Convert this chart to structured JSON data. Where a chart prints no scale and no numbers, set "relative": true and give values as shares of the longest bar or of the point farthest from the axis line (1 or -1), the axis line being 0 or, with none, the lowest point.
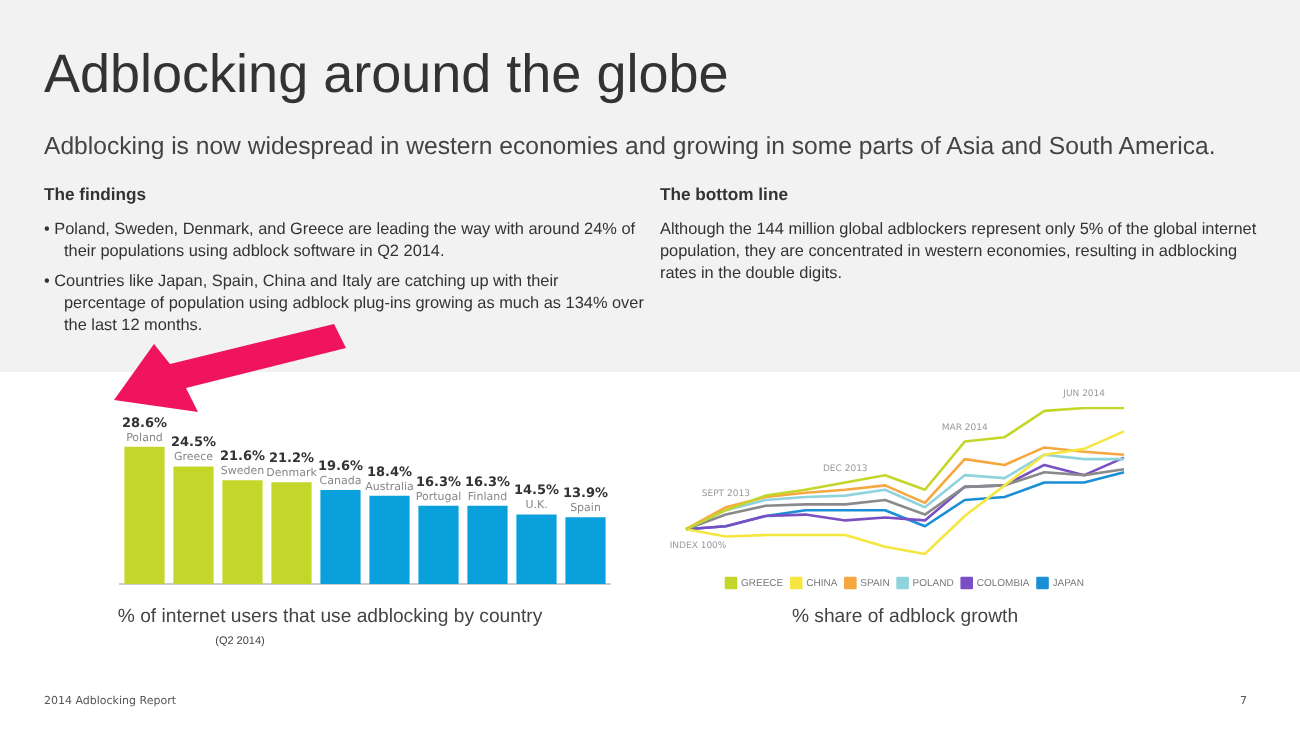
{
  "chart_data": [
    {
      "type": "other",
      "title": "Adblocking around the globe",
      "subtitle": "Adblocking is now widespread in western economies and growing in some parts of Asia and South America.",
      "annotations": [
        "The findings",
        "• Poland, Sweden, Denmark, and Greece are leading the way with around 24% of their populations using adblock software in Q2 2014.",
        "• Countries like Japan, Spain, China and Italy are catching up with their percentage of population using adblock plug-ins growing as much as 134% over the last 12 months.",
        "The bottom line",
        "Although the 144 million global adblockers represent only 5% of the global internet population, they are concentrated in western economies, resulting in adblocking rates in the double digits.",
        "2014 Adblocking Report",
        "7"
      ]
    },
    {
      "type": "bar",
      "xlabel": "% of internet users that use adblocking by country",
      "annotations": [
        "(Q2 2014)"
      ],
      "categories": [
        "Poland",
        "Greece",
        "Sweden",
        "Denmark",
        "Canada",
        "Australia",
        "Portugal",
        "Finland",
        "U.K.",
        "Spain"
      ],
      "values": [
        28.6,
        24.5,
        21.6,
        21.2,
        19.6,
        18.4,
        16.3,
        16.3,
        14.5,
        13.9
      ],
      "colors": [
        "#c5d62a",
        "#c5d62a",
        "#c5d62a",
        "#c5d62a",
        "#0aa0dc",
        "#0aa0dc",
        "#0aa0dc",
        "#0aa0dc",
        "#0aa0dc",
        "#0aa0dc"
      ],
      "value_labels": [
        "28.6%",
        "24.5%",
        "21.6%",
        "21.2%",
        "19.6%",
        "18.4%",
        "16.3%",
        "16.3%",
        "14.5%",
        "13.9%"
      ]
    },
    {
      "type": "line",
      "xlabel": "% share of adblock growth",
      "relative": true,
      "legend": "bottom",
      "categories": [
        "INDEX 100%",
        "SEPT 2013",
        null,
        null,
        "DEC 2013",
        null,
        null,
        "MAR 2014",
        null,
        null,
        "JUN 2014",
        null
      ],
      "series": [
        {
          "name": "GREECE",
          "color": "#c5d62a",
          "values": [
            0.17,
            0.3,
            0.4,
            0.44,
            0.49,
            0.54,
            0.44,
            0.77,
            0.8,
            0.98,
            1.0,
            1.0
          ]
        },
        {
          "name": "CHINA",
          "color": "#f5e642",
          "values": [
            0.17,
            0.12,
            0.13,
            0.13,
            0.13,
            0.05,
            0,
            0.26,
            0.47,
            0.68,
            0.72,
            0.84
          ]
        },
        {
          "name": "SPAIN",
          "color": "#f7a740",
          "values": [
            0.17,
            0.32,
            0.39,
            0.42,
            0.44,
            0.47,
            0.35,
            0.65,
            0.61,
            0.73,
            0.7,
            0.68
          ]
        },
        {
          "name": "POLAND",
          "color": "#8fd3dc",
          "values": [
            0.17,
            0.3,
            0.37,
            0.39,
            0.4,
            0.44,
            0.32,
            0.54,
            0.52,
            0.68,
            0.65,
            0.65
          ]
        },
        {
          "color": "#8a8a8a",
          "values": [
            0.17,
            0.27,
            0.33,
            0.34,
            0.34,
            0.37,
            0.27,
            0.46,
            0.47,
            0.56,
            0.54,
            0.58
          ]
        },
        {
          "name": "COLOMBIA",
          "color": "#7a4fc4",
          "values": [
            0.17,
            0.19,
            0.26,
            0.27,
            0.23,
            0.25,
            0.23,
            0.46,
            0.47,
            0.61,
            0.54,
            0.66
          ]
        },
        {
          "name": "JAPAN",
          "color": "#1a8fd6",
          "values": [
            0.17,
            0.19,
            0.26,
            0.3,
            0.3,
            0.3,
            0.19,
            0.37,
            0.39,
            0.49,
            0.49,
            0.56
          ]
        }
      ]
    }
  ]
}
